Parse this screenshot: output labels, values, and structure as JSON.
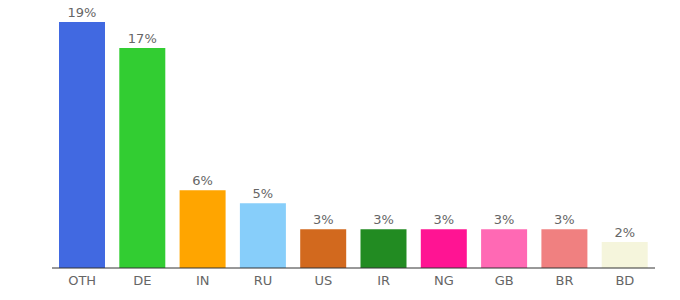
{
  "chart_data": {
    "type": "bar",
    "categories": [
      "OTH",
      "DE",
      "IN",
      "RU",
      "US",
      "IR",
      "NG",
      "GB",
      "BR",
      "BD"
    ],
    "values": [
      19,
      17,
      6,
      5,
      3,
      3,
      3,
      3,
      3,
      2
    ],
    "value_labels": [
      "19%",
      "17%",
      "6%",
      "5%",
      "3%",
      "3%",
      "3%",
      "3%",
      "3%",
      "2%"
    ],
    "colors": [
      "#4169e1",
      "#32cd32",
      "#ffa500",
      "#87cefa",
      "#d2691e",
      "#228b22",
      "#ff1493",
      "#ff69b4",
      "#f08080",
      "#f5f5dc"
    ],
    "ylim": [
      0,
      19
    ],
    "data_labels": true,
    "tick_labels": "x",
    "grid": false
  }
}
